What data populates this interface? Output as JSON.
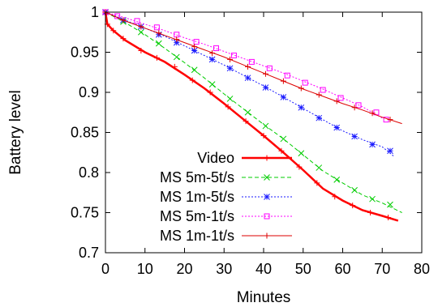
{
  "chart_data": {
    "type": "line",
    "title": "",
    "xlabel": "Minutes",
    "ylabel": "Battery level",
    "xlim": [
      0,
      80
    ],
    "ylim": [
      0.7,
      1.0
    ],
    "xticks": [
      0,
      10,
      20,
      30,
      40,
      50,
      60,
      70,
      80
    ],
    "yticks": [
      0.7,
      0.75,
      0.8,
      0.85,
      0.9,
      0.95,
      1.0
    ],
    "xtick_labels": [
      "0",
      "10",
      "20",
      "30",
      "40",
      "50",
      "60",
      "70",
      "80"
    ],
    "ytick_labels": [
      "0.7",
      "0.75",
      "0.8",
      "0.85",
      "0.9",
      "0.95",
      "1"
    ],
    "grid": false,
    "legend": "bottom-left",
    "series": [
      {
        "name": "Video",
        "color": "#ff0000",
        "line_style": "solid",
        "marker": "plus",
        "line_points": [
          [
            0,
            1.0
          ],
          [
            0.5,
            0.985
          ],
          [
            2,
            0.977
          ],
          [
            5,
            0.965
          ],
          [
            10,
            0.95
          ],
          [
            15,
            0.938
          ],
          [
            20,
            0.922
          ],
          [
            25,
            0.905
          ],
          [
            30,
            0.886
          ],
          [
            35,
            0.866
          ],
          [
            40,
            0.846
          ],
          [
            45,
            0.825
          ],
          [
            50,
            0.803
          ],
          [
            55,
            0.78
          ],
          [
            60,
            0.765
          ],
          [
            65,
            0.753
          ],
          [
            70,
            0.746
          ],
          [
            74,
            0.74
          ]
        ],
        "marker_points": [
          [
            0,
            1.0
          ],
          [
            0.5,
            0.985
          ],
          [
            2,
            0.977
          ],
          [
            4.5,
            0.967
          ],
          [
            9,
            0.952
          ],
          [
            13,
            0.943
          ],
          [
            17.5,
            0.932
          ],
          [
            22,
            0.915
          ],
          [
            26.5,
            0.9
          ],
          [
            31,
            0.882
          ],
          [
            35.5,
            0.864
          ],
          [
            40,
            0.846
          ],
          [
            44.5,
            0.827
          ],
          [
            49,
            0.807
          ],
          [
            53.5,
            0.787
          ],
          [
            58,
            0.77
          ],
          [
            62.5,
            0.759
          ],
          [
            67,
            0.75
          ],
          [
            71.5,
            0.744
          ]
        ]
      },
      {
        "name": "MS 5m-5t/s",
        "color": "#00cc00",
        "line_style": "dashed",
        "marker": "cross",
        "line_points": [
          [
            0,
            1.0
          ],
          [
            5,
            0.987
          ],
          [
            10,
            0.972
          ],
          [
            15,
            0.955
          ],
          [
            20,
            0.937
          ],
          [
            25,
            0.918
          ],
          [
            30,
            0.898
          ],
          [
            35,
            0.879
          ],
          [
            40,
            0.86
          ],
          [
            45,
            0.842
          ],
          [
            50,
            0.822
          ],
          [
            55,
            0.802
          ],
          [
            60,
            0.787
          ],
          [
            65,
            0.772
          ],
          [
            70,
            0.762
          ],
          [
            75,
            0.75
          ]
        ],
        "marker_points": [
          [
            0,
            1.0
          ],
          [
            4.5,
            0.988
          ],
          [
            9,
            0.975
          ],
          [
            13.5,
            0.961
          ],
          [
            18,
            0.944
          ],
          [
            22.5,
            0.928
          ],
          [
            27,
            0.91
          ],
          [
            31.5,
            0.892
          ],
          [
            36,
            0.875
          ],
          [
            40.5,
            0.858
          ],
          [
            45,
            0.842
          ],
          [
            49.5,
            0.824
          ],
          [
            54,
            0.806
          ],
          [
            58.5,
            0.791
          ],
          [
            63,
            0.778
          ],
          [
            67.5,
            0.767
          ],
          [
            72,
            0.76
          ]
        ]
      },
      {
        "name": "MS 1m-5t/s",
        "color": "#1a1aff",
        "line_style": "dotted",
        "marker": "star",
        "line_points": [
          [
            0,
            1.0
          ],
          [
            5,
            0.99
          ],
          [
            10,
            0.98
          ],
          [
            15,
            0.97
          ],
          [
            20,
            0.958
          ],
          [
            25,
            0.946
          ],
          [
            30,
            0.934
          ],
          [
            35,
            0.921
          ],
          [
            40,
            0.908
          ],
          [
            45,
            0.894
          ],
          [
            50,
            0.88
          ],
          [
            55,
            0.866
          ],
          [
            60,
            0.852
          ],
          [
            65,
            0.841
          ],
          [
            70,
            0.832
          ],
          [
            73,
            0.82
          ]
        ],
        "marker_points": [
          [
            0,
            1.0
          ],
          [
            4.5,
            0.99
          ],
          [
            9,
            0.982
          ],
          [
            13.5,
            0.972
          ],
          [
            18,
            0.962
          ],
          [
            22.5,
            0.952
          ],
          [
            27,
            0.941
          ],
          [
            31.5,
            0.93
          ],
          [
            36,
            0.918
          ],
          [
            40.5,
            0.906
          ],
          [
            45,
            0.894
          ],
          [
            49.5,
            0.881
          ],
          [
            54,
            0.868
          ],
          [
            58.5,
            0.856
          ],
          [
            63,
            0.845
          ],
          [
            67.5,
            0.835
          ],
          [
            72,
            0.827
          ]
        ]
      },
      {
        "name": "MS 5m-1t/s",
        "color": "#ff00ff",
        "line_style": "dotted",
        "marker": "open-square",
        "line_points": [
          [
            0,
            1.0
          ],
          [
            5,
            0.993
          ],
          [
            10,
            0.985
          ],
          [
            15,
            0.977
          ],
          [
            20,
            0.968
          ],
          [
            25,
            0.96
          ],
          [
            30,
            0.951
          ],
          [
            35,
            0.942
          ],
          [
            40,
            0.933
          ],
          [
            45,
            0.924
          ],
          [
            50,
            0.914
          ],
          [
            55,
            0.904
          ],
          [
            60,
            0.893
          ],
          [
            65,
            0.882
          ],
          [
            70,
            0.868
          ]
        ],
        "marker_points": [
          [
            0,
            1.0
          ],
          [
            3,
            0.995
          ],
          [
            8,
            0.989
          ],
          [
            13,
            0.981
          ],
          [
            18,
            0.972
          ],
          [
            23,
            0.963
          ],
          [
            28,
            0.955
          ],
          [
            32.5,
            0.946
          ],
          [
            37,
            0.938
          ],
          [
            41.5,
            0.93
          ],
          [
            46,
            0.921
          ],
          [
            50.5,
            0.912
          ],
          [
            55,
            0.903
          ],
          [
            59.5,
            0.893
          ],
          [
            64,
            0.884
          ],
          [
            68.5,
            0.875
          ],
          [
            71,
            0.866
          ]
        ]
      },
      {
        "name": "MS 1m-1t/s",
        "color": "#dd0000",
        "line_style": "solid-thin",
        "marker": "plus",
        "line_points": [
          [
            0,
            1.0
          ],
          [
            5,
            0.989
          ],
          [
            10,
            0.98
          ],
          [
            15,
            0.971
          ],
          [
            20,
            0.962
          ],
          [
            25,
            0.953
          ],
          [
            30,
            0.944
          ],
          [
            35,
            0.934
          ],
          [
            40,
            0.924
          ],
          [
            45,
            0.914
          ],
          [
            50,
            0.904
          ],
          [
            55,
            0.895
          ],
          [
            60,
            0.886
          ],
          [
            65,
            0.878
          ],
          [
            70,
            0.869
          ],
          [
            75,
            0.861
          ]
        ],
        "marker_points": [
          [
            0,
            1.0
          ],
          [
            4.5,
            0.99
          ],
          [
            9,
            0.982
          ],
          [
            13.5,
            0.974
          ],
          [
            18,
            0.966
          ],
          [
            22.5,
            0.957
          ],
          [
            27,
            0.949
          ],
          [
            31.5,
            0.941
          ],
          [
            36,
            0.932
          ],
          [
            40.5,
            0.923
          ],
          [
            45,
            0.914
          ],
          [
            49.5,
            0.905
          ],
          [
            54,
            0.897
          ],
          [
            58.5,
            0.889
          ],
          [
            63,
            0.881
          ],
          [
            67.5,
            0.874
          ],
          [
            72,
            0.866
          ]
        ]
      }
    ]
  }
}
